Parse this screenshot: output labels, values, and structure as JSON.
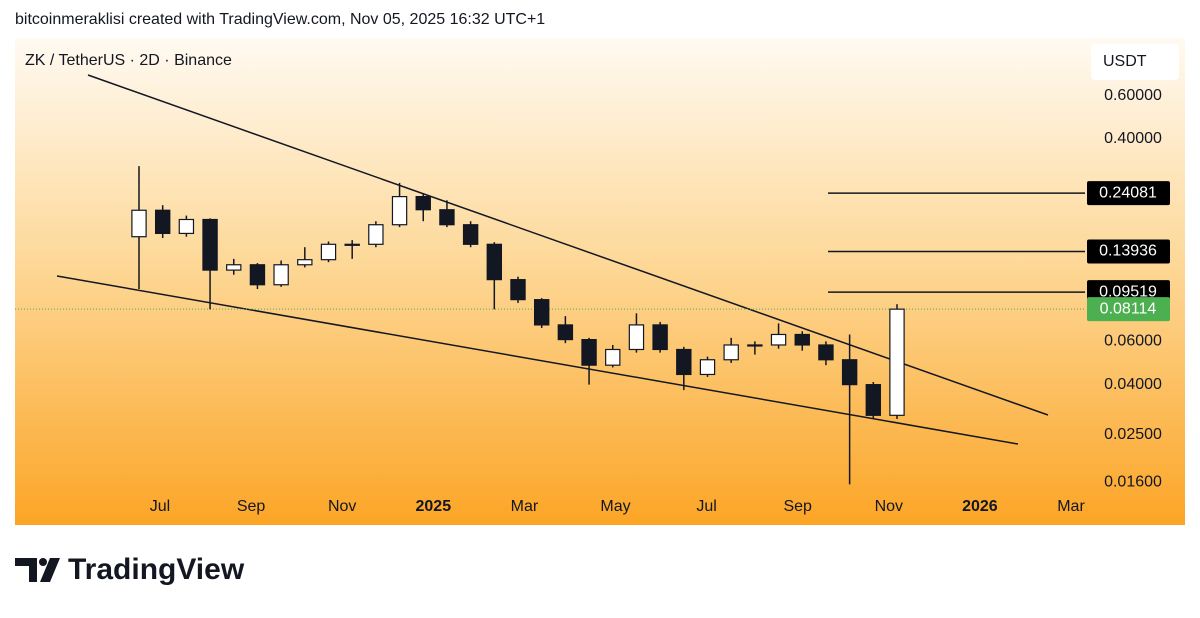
{
  "header": {
    "attribution": "bitcoinmeraklisi created with TradingView.com, Nov 05, 2025 16:32 UTC+1"
  },
  "chart_data": {
    "type": "candlestick",
    "title": "ZK / TetherUS · 2D · Binance",
    "currency": "USDT",
    "categories": [
      "Jul",
      "Sep",
      "Nov",
      "2025",
      "Mar",
      "May",
      "Jul",
      "Sep",
      "Nov",
      "2026",
      "Mar"
    ],
    "open": [
      0.16,
      0.205,
      0.165,
      0.188,
      0.117,
      0.123,
      0.102,
      0.123,
      0.129,
      0.149,
      0.149,
      0.179,
      0.233,
      0.206,
      0.179,
      0.149,
      0.107,
      0.0887,
      0.07,
      0.061,
      0.048,
      0.0556,
      0.07,
      0.0556,
      0.044,
      0.0505,
      0.058,
      0.058,
      0.064,
      0.058,
      0.0505,
      0.04,
      0.03
    ],
    "high": [
      0.31,
      0.215,
      0.195,
      0.19,
      0.13,
      0.125,
      0.128,
      0.145,
      0.153,
      0.155,
      0.185,
      0.265,
      0.24,
      0.225,
      0.185,
      0.152,
      0.11,
      0.09,
      0.076,
      0.062,
      0.058,
      0.078,
      0.072,
      0.057,
      0.052,
      0.062,
      0.06,
      0.071,
      0.066,
      0.06,
      0.064,
      0.041,
      0.085
    ],
    "low": [
      0.098,
      0.158,
      0.16,
      0.081,
      0.112,
      0.098,
      0.1,
      0.12,
      0.126,
      0.13,
      0.145,
      0.175,
      0.185,
      0.175,
      0.145,
      0.081,
      0.086,
      0.068,
      0.059,
      0.04,
      0.047,
      0.054,
      0.054,
      0.038,
      0.043,
      0.049,
      0.053,
      0.056,
      0.055,
      0.048,
      0.0157,
      0.029,
      0.029
    ],
    "close": [
      0.205,
      0.165,
      0.188,
      0.117,
      0.123,
      0.102,
      0.123,
      0.129,
      0.149,
      0.149,
      0.179,
      0.233,
      0.206,
      0.179,
      0.149,
      0.107,
      0.0887,
      0.07,
      0.061,
      0.048,
      0.0556,
      0.07,
      0.0556,
      0.044,
      0.0505,
      0.058,
      0.058,
      0.064,
      0.058,
      0.0505,
      0.04,
      0.03,
      0.08114
    ],
    "color": "#131722",
    "log_scale": true,
    "ylim": [
      0.0149,
      1.03
    ],
    "yticks": [
      {
        "value": 0.6,
        "label": "0.60000"
      },
      {
        "value": 0.4,
        "label": "0.40000"
      },
      {
        "value": 0.06,
        "label": "0.06000"
      },
      {
        "value": 0.04,
        "label": "0.04000"
      },
      {
        "value": 0.025,
        "label": "0.02500"
      },
      {
        "value": 0.016,
        "label": "0.01600"
      }
    ],
    "price_levels": [
      0.24081,
      0.13936,
      0.09519
    ],
    "last_price": 0.08114,
    "last_price_color": "#4caf50"
  },
  "footer": {
    "brand": "TradingView"
  }
}
